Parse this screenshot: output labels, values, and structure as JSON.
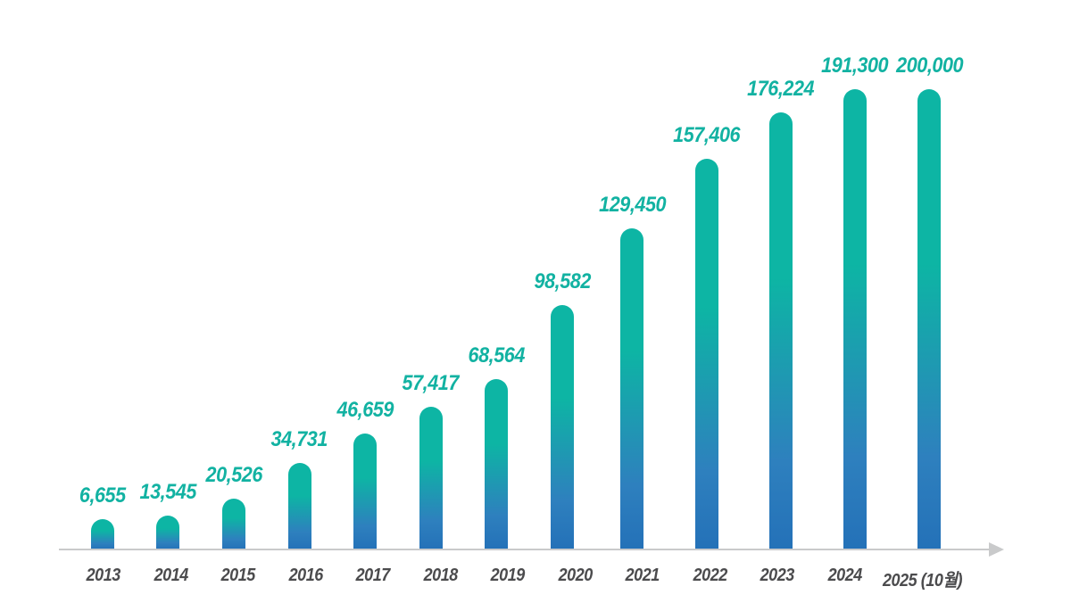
{
  "chart_data": {
    "type": "bar",
    "title": "",
    "xlabel": "",
    "ylabel": "",
    "ylim": [
      0,
      200000
    ],
    "grid": false,
    "legend": false,
    "categories": [
      "2013",
      "2014",
      "2015",
      "2016",
      "2017",
      "2018",
      "2019",
      "2020",
      "2021",
      "2022",
      "2023",
      "2024",
      "2025 (10월)"
    ],
    "values": [
      6655,
      13545,
      20526,
      34731,
      46659,
      57417,
      68564,
      98582,
      129450,
      157406,
      176224,
      191300,
      200000
    ],
    "value_labels": [
      "6,655",
      "13,545",
      "20,526",
      "34,731",
      "46,659",
      "57,417",
      "68,564",
      "98,582",
      "129,450",
      "157,406",
      "176,224",
      "191,300",
      "200,000"
    ],
    "colors": {
      "bar_gradient_top": "#0DB5A4",
      "bar_gradient_mid": "#2E80BE",
      "bar_gradient_bottom": "#2471B8",
      "value_label": "#12B2A2",
      "year_label": "#4B4B4D",
      "axis": "#C9CACB"
    }
  }
}
